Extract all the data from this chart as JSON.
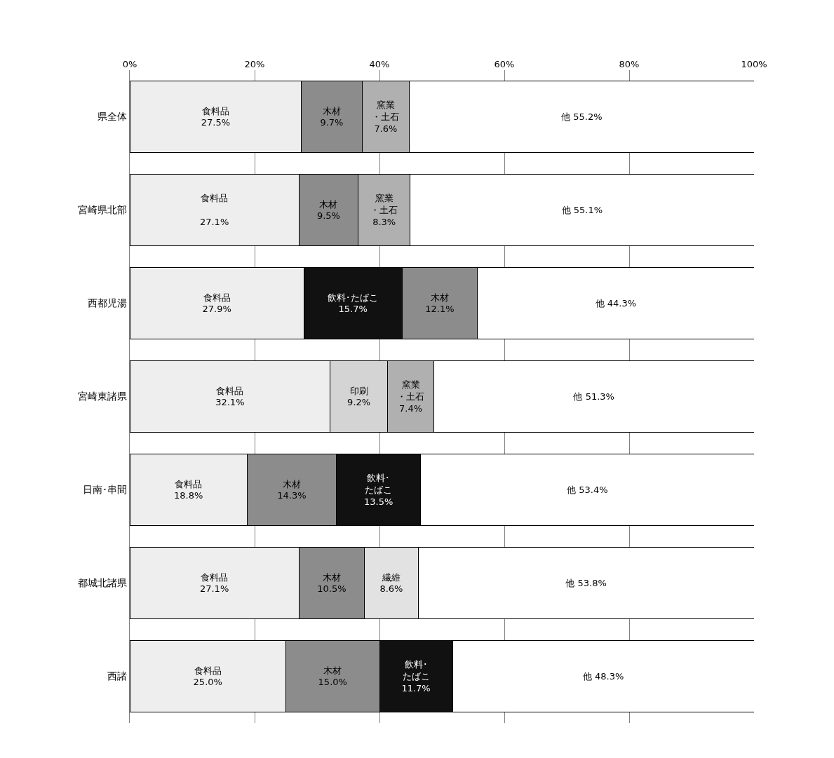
{
  "chart_data": {
    "type": "bar",
    "orientation": "horizontal",
    "stacked": true,
    "categories": [
      "県全体",
      "宮崎県北部",
      "西都児湯",
      "宮崎東諸県",
      "日南･串間",
      "都城北諸県",
      "西諸"
    ],
    "xlim": [
      0,
      100
    ],
    "xticks": [
      {
        "value": 0,
        "label": "0%"
      },
      {
        "value": 20,
        "label": "20%"
      },
      {
        "value": 40,
        "label": "40%"
      },
      {
        "value": 60,
        "label": "60%"
      },
      {
        "value": 80,
        "label": "80%"
      },
      {
        "value": 100,
        "label": "100%"
      }
    ],
    "grid": "x",
    "series": [
      {
        "values": [
          27.5,
          27.1,
          27.9,
          32.1,
          18.8,
          27.1,
          25.0
        ],
        "colors": [
          "#eeeeee",
          "#eeeeee",
          "#eeeeee",
          "#eeeeee",
          "#eeeeee",
          "#eeeeee",
          "#eeeeee"
        ],
        "value_labels": [
          "食料品\n27.5%",
          "食料品\n\n27.1%",
          "食料品\n27.9%",
          "食料品\n32.1%",
          "食料品\n18.8%",
          "食料品\n27.1%",
          "食料品\n25.0%"
        ]
      },
      {
        "values": [
          9.7,
          9.5,
          15.7,
          9.2,
          14.3,
          10.5,
          15.0
        ],
        "colors": [
          "#8c8c8c",
          "#8c8c8c",
          "#111111",
          "#d4d4d4",
          "#8c8c8c",
          "#8c8c8c",
          "#8c8c8c"
        ],
        "value_labels": [
          "木材\n9.7%",
          "木材\n9.5%",
          "飲料･たばこ\n15.7%",
          "印刷\n9.2%",
          "木材\n14.3%",
          "木材\n10.5%",
          "木材\n15.0%"
        ]
      },
      {
        "values": [
          7.6,
          8.3,
          12.1,
          7.4,
          13.5,
          8.6,
          11.7
        ],
        "colors": [
          "#b0b0b0",
          "#b0b0b0",
          "#8c8c8c",
          "#b0b0b0",
          "#111111",
          "#e2e2e2",
          "#111111"
        ],
        "value_labels": [
          "窯業・土石\n7.6%",
          "窯業・土石\n8.3%",
          "木材\n12.1%",
          "窯業・土石\n7.4%",
          "飲料･たばこ\n13.5%",
          "繊維\n8.6%",
          "飲料･たばこ\n11.7%"
        ]
      },
      {
        "values": [
          55.2,
          55.1,
          44.3,
          51.3,
          53.4,
          53.8,
          48.3
        ],
        "colors": [
          "#ffffff",
          "#ffffff",
          "#ffffff",
          "#ffffff",
          "#ffffff",
          "#ffffff",
          "#ffffff"
        ],
        "value_labels": [
          "他 55.2%",
          "他 55.1%",
          "他 44.3%",
          "他 51.3%",
          "他 53.4%",
          "他 53.8%",
          "他 48.3%"
        ]
      }
    ]
  }
}
